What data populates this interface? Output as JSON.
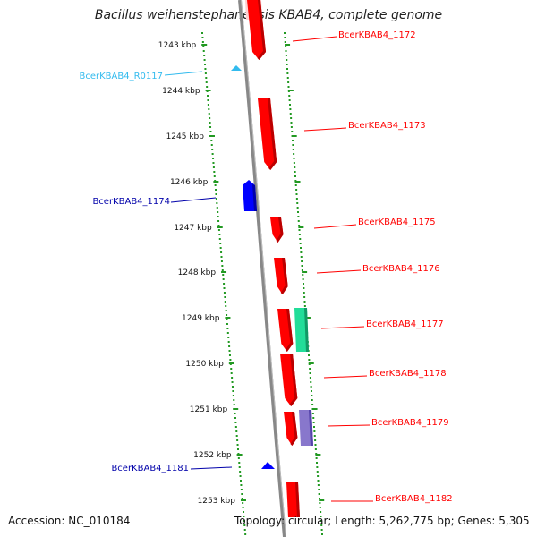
{
  "title": "Bacillus weihenstephanensis KBAB4, complete genome",
  "footer": {
    "accession": "Accession: NC_010184",
    "summary": "Topology: circular; Length: 5,262,775 bp; Genes: 5,305"
  },
  "colors": {
    "forward_gene": "#ff0000",
    "reverse_gene": "#0000ff",
    "rna": "#33bbee",
    "teal_feature": "#22dd99",
    "purple_feature": "#8877cc",
    "tick": "#229922",
    "backbone": "#888888"
  },
  "ticks": [
    {
      "label": "1243 kbp"
    },
    {
      "label": "1244 kbp"
    },
    {
      "label": "1245 kbp"
    },
    {
      "label": "1246 kbp"
    },
    {
      "label": "1247 kbp"
    },
    {
      "label": "1248 kbp"
    },
    {
      "label": "1249 kbp"
    },
    {
      "label": "1250 kbp"
    },
    {
      "label": "1251 kbp"
    },
    {
      "label": "1252 kbp"
    },
    {
      "label": "1253 kbp"
    }
  ],
  "genes": [
    {
      "name": "BcerKBAB4_1172",
      "side": "right",
      "color": "#ff0000"
    },
    {
      "name": "BcerKBAB4_R0117",
      "side": "left",
      "color": "#33bbee"
    },
    {
      "name": "BcerKBAB4_1173",
      "side": "right",
      "color": "#ff0000"
    },
    {
      "name": "BcerKBAB4_1174",
      "side": "left",
      "color": "#0000aa"
    },
    {
      "name": "BcerKBAB4_1175",
      "side": "right",
      "color": "#ff0000"
    },
    {
      "name": "BcerKBAB4_1176",
      "side": "right",
      "color": "#ff0000"
    },
    {
      "name": "BcerKBAB4_1177",
      "side": "right",
      "color": "#ff0000"
    },
    {
      "name": "BcerKBAB4_1178",
      "side": "right",
      "color": "#ff0000"
    },
    {
      "name": "BcerKBAB4_1179",
      "side": "right",
      "color": "#ff0000"
    },
    {
      "name": "BcerKBAB4_1181",
      "side": "left",
      "color": "#0000aa"
    },
    {
      "name": "BcerKBAB4_1182",
      "side": "right",
      "color": "#ff0000"
    }
  ]
}
